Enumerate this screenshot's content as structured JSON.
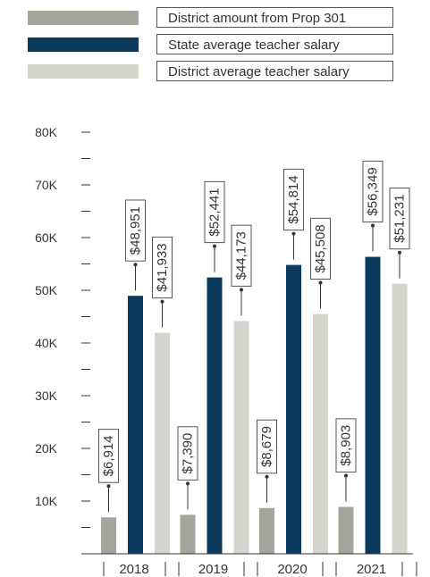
{
  "chart_data": {
    "type": "bar",
    "categories": [
      "2018",
      "2019",
      "2020",
      "2021"
    ],
    "series": [
      {
        "name": "District amount from Prop 301",
        "color": "#a4a59d",
        "values": [
          6914,
          7390,
          8679,
          8903
        ],
        "labels": [
          "$6,914",
          "$7,390",
          "$8,679",
          "$8,903"
        ]
      },
      {
        "name": "State average teacher salary",
        "color": "#0b3a5c",
        "values": [
          48951,
          52441,
          54814,
          56349
        ],
        "labels": [
          "$48,951",
          "$52,441",
          "$54,814",
          "$56,349"
        ]
      },
      {
        "name": "District average teacher salary",
        "color": "#d5d5d0",
        "values": [
          41933,
          44173,
          45508,
          51231
        ],
        "labels": [
          "$41,933",
          "$44,173",
          "$45,508",
          "$51,231"
        ]
      }
    ],
    "y_ticks": [
      "10K",
      "20K",
      "30K",
      "40K",
      "50K",
      "60K",
      "70K",
      "80K"
    ],
    "ylim": [
      0,
      80000
    ],
    "legend_position": "top"
  }
}
